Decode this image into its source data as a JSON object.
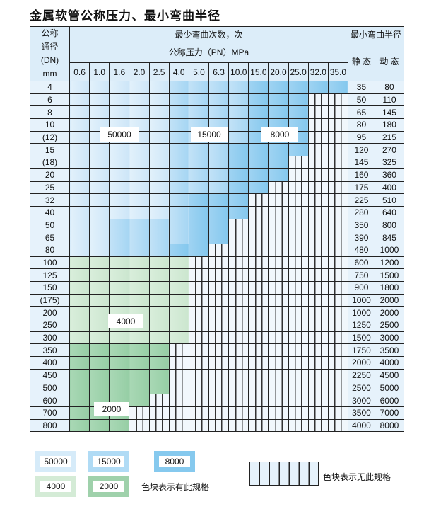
{
  "title": "金属软管公称压力、最小弯曲半径",
  "header": {
    "dn_label": [
      "公称",
      "通径",
      "(DN)",
      "mm"
    ],
    "cycles_label": "最少弯曲次数，次",
    "pressure_label": "公称压力（PN）MPa",
    "radius_label": "最小弯曲半径",
    "static_label": "静 态",
    "dynamic_label": "动 态",
    "pressures": [
      "0.6",
      "1.0",
      "1.6",
      "2.0",
      "2.5",
      "4.0",
      "5.0",
      "6.3",
      "10.0",
      "15.0",
      "20.0",
      "25.0",
      "32.0",
      "35.0"
    ]
  },
  "categories": {
    "L": {
      "cycles": "50000",
      "color": "#d6ebf9"
    },
    "M": {
      "cycles": "15000",
      "color": "#b0dbf5"
    },
    "D": {
      "cycles": "8000",
      "color": "#86c9ee"
    },
    "G": {
      "cycles": "4000",
      "color": "#d4ebd6"
    },
    "H": {
      "cycles": "2000",
      "color": "#9fd1ab"
    },
    "N": {
      "cycles": "",
      "color": "#eef5fb"
    }
  },
  "rows": [
    {
      "dn": "4",
      "cells": "LLLLLMMMMDDDDD",
      "static": "35",
      "dynamic": "80"
    },
    {
      "dn": "6",
      "cells": "LLLLLMMMMDDDNN",
      "static": "50",
      "dynamic": "110"
    },
    {
      "dn": "8",
      "cells": "LLLLLMMMMDDDNN",
      "static": "65",
      "dynamic": "145"
    },
    {
      "dn": "10",
      "cells": "LLLLLMMMMDDDNN",
      "static": "80",
      "dynamic": "180"
    },
    {
      "dn": "(12)",
      "cells": "LLLLLMMMMDDDNN",
      "static": "95",
      "dynamic": "215"
    },
    {
      "dn": "15",
      "cells": "LLLLLMMMDDDDNN",
      "static": "120",
      "dynamic": "270"
    },
    {
      "dn": "(18)",
      "cells": "LLLLLMMMDDDNNN",
      "static": "145",
      "dynamic": "325"
    },
    {
      "dn": "20",
      "cells": "LLLLLMMMDDDNNN",
      "static": "160",
      "dynamic": "360"
    },
    {
      "dn": "25",
      "cells": "LLLLLMMMDDNNNN",
      "static": "175",
      "dynamic": "400"
    },
    {
      "dn": "32",
      "cells": "LLLLLMDDDNNNNN",
      "static": "225",
      "dynamic": "510"
    },
    {
      "dn": "40",
      "cells": "LLLLLMDDDNNNNN",
      "static": "280",
      "dynamic": "640"
    },
    {
      "dn": "50",
      "cells": "LLMMMMDDNNNNNN",
      "static": "350",
      "dynamic": "800"
    },
    {
      "dn": "65",
      "cells": "LLMMMMDDNNNNNN",
      "static": "390",
      "dynamic": "845"
    },
    {
      "dn": "80",
      "cells": "LLMMMDDNNNNNNN",
      "static": "480",
      "dynamic": "1000"
    },
    {
      "dn": "100",
      "cells": "GGGGGGNNNNNNNN",
      "static": "600",
      "dynamic": "1200"
    },
    {
      "dn": "125",
      "cells": "GGGGGGNNNNNNNN",
      "static": "750",
      "dynamic": "1500"
    },
    {
      "dn": "150",
      "cells": "GGGGGGNNNNNNNN",
      "static": "900",
      "dynamic": "1800"
    },
    {
      "dn": "(175)",
      "cells": "GGGGGGNNNNNNNN",
      "static": "1000",
      "dynamic": "2000"
    },
    {
      "dn": "200",
      "cells": "GGGGGGNNNNNNNN",
      "static": "1000",
      "dynamic": "2000"
    },
    {
      "dn": "250",
      "cells": "GGGGGGNNNNNNNN",
      "static": "1250",
      "dynamic": "2500"
    },
    {
      "dn": "300",
      "cells": "GGGGGGNNNNNNNN",
      "static": "1500",
      "dynamic": "3000"
    },
    {
      "dn": "350",
      "cells": "HHHHHNNNNNNNNN",
      "static": "1750",
      "dynamic": "3500"
    },
    {
      "dn": "400",
      "cells": "HHHHHNNNNNNNNN",
      "static": "2000",
      "dynamic": "4000"
    },
    {
      "dn": "450",
      "cells": "HHHHHNNNNNNNNN",
      "static": "2250",
      "dynamic": "4500"
    },
    {
      "dn": "500",
      "cells": "HHHHHNNNNNNNNN",
      "static": "2500",
      "dynamic": "5000"
    },
    {
      "dn": "600",
      "cells": "HHHHNNNNNNNNNN",
      "static": "3000",
      "dynamic": "6000"
    },
    {
      "dn": "700",
      "cells": "HHHNNNNNNNNNNN",
      "static": "3500",
      "dynamic": "7000"
    },
    {
      "dn": "800",
      "cells": "HHHNNNNNNNNNNN",
      "static": "4000",
      "dynamic": "8000"
    }
  ],
  "region_labels": {
    "L": "50000",
    "M": "15000",
    "D": "8000",
    "G": "4000",
    "H": "2000"
  },
  "legend": {
    "items": [
      {
        "key": "L",
        "label": "50000"
      },
      {
        "key": "M",
        "label": "15000"
      },
      {
        "key": "D",
        "label": "8000"
      },
      {
        "key": "G",
        "label": "4000"
      },
      {
        "key": "H",
        "label": "2000"
      }
    ],
    "has_spec_text": "色块表示有此规格",
    "no_spec_text": "色块表示无此规格"
  }
}
